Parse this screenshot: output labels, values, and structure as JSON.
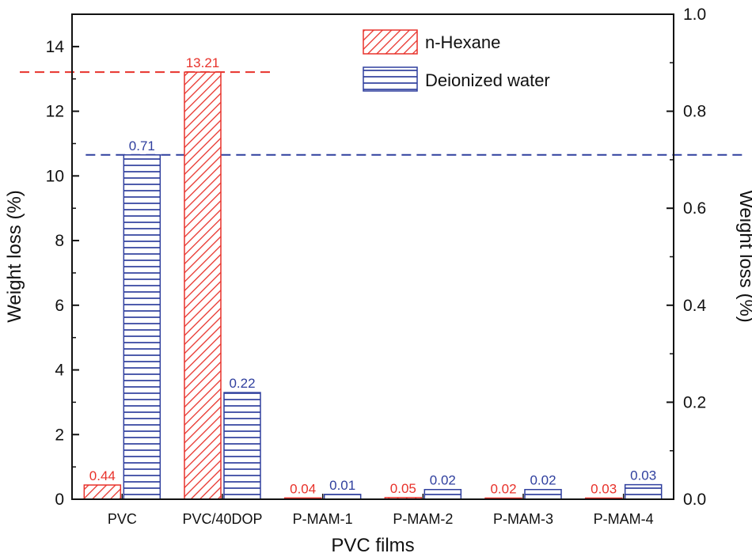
{
  "chart_data": {
    "type": "bar",
    "xlabel": "PVC films",
    "ylabel": "Weight loss (%)",
    "y2label": "Weight loss (%)",
    "categories": [
      "PVC",
      "PVC/40DOP",
      "P-MAM-1",
      "P-MAM-2",
      "P-MAM-3",
      "P-MAM-4"
    ],
    "ylim": [
      0,
      15
    ],
    "y2lim": [
      0,
      1.0
    ],
    "yticks": [
      "0",
      "2",
      "4",
      "6",
      "8",
      "10",
      "12",
      "14"
    ],
    "y2ticks": [
      "0.0",
      "0.2",
      "0.4",
      "0.6",
      "0.8",
      "1.0"
    ],
    "series": [
      {
        "name": "n-Hexane",
        "axis": "left",
        "color": "#e8322b",
        "pattern": "diagonal-hatch",
        "values": [
          0.44,
          13.21,
          0.04,
          0.05,
          0.02,
          0.03
        ],
        "labels": [
          "0.44",
          "13.21",
          "0.04",
          "0.05",
          "0.02",
          "0.03"
        ]
      },
      {
        "name": "Deionized water",
        "axis": "right",
        "color": "#2f3f9e",
        "pattern": "horizontal-hatch",
        "values": [
          0.71,
          0.22,
          0.01,
          0.02,
          0.02,
          0.03
        ],
        "labels": [
          "0.71",
          "0.22",
          "0.01",
          "0.02",
          "0.02",
          "0.03"
        ]
      }
    ],
    "reference_lines": [
      {
        "series": "n-Hexane",
        "axis": "left",
        "value": 13.21,
        "style": "dashed",
        "color": "#e8322b"
      },
      {
        "series": "Deionized water",
        "axis": "right",
        "value": 0.71,
        "style": "dashed",
        "color": "#2f3f9e"
      }
    ],
    "legend_position": "top-center"
  }
}
